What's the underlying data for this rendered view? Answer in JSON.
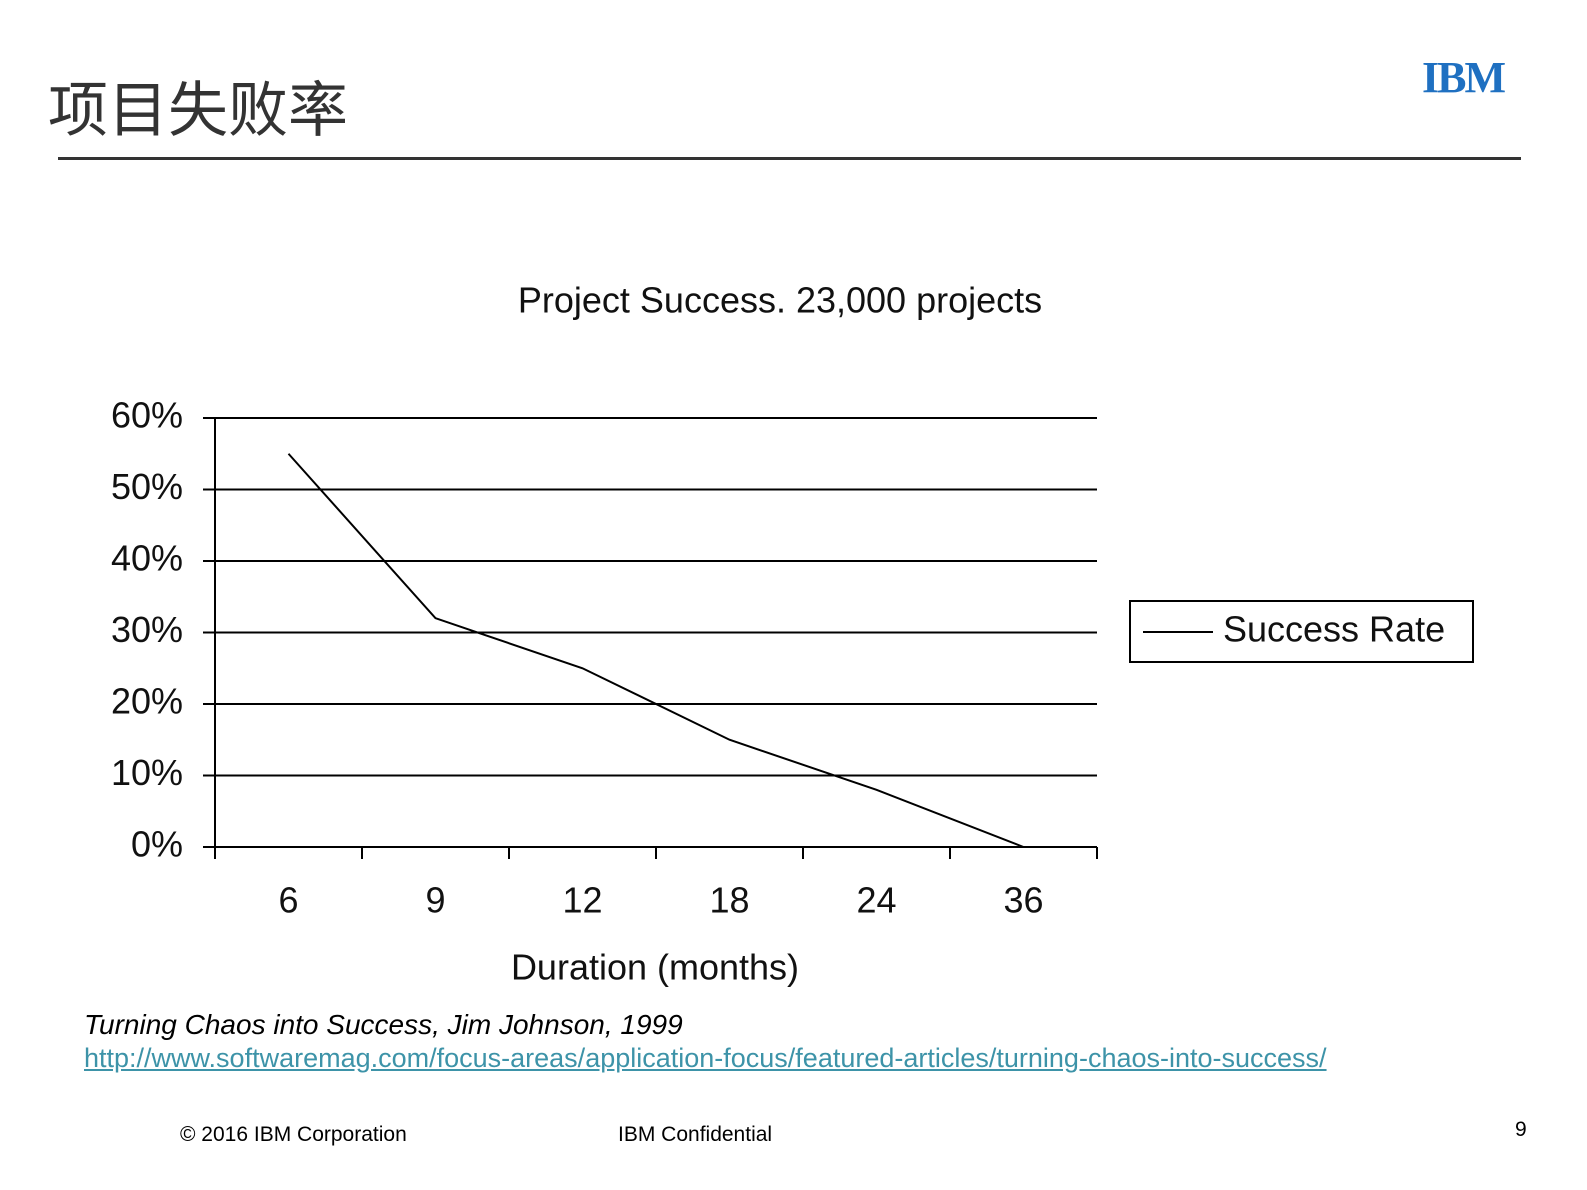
{
  "header": {
    "title": "项目失败率",
    "logo": "IBM"
  },
  "chart_data": {
    "type": "line",
    "title": "Project Success. 23,000 projects",
    "x_label": "Duration (months)",
    "categories": [
      "6",
      "9",
      "12",
      "18",
      "24",
      "36"
    ],
    "series": [
      {
        "name": "Success Rate",
        "color": "#000000",
        "values": [
          55,
          32,
          25,
          15,
          8,
          0
        ]
      }
    ],
    "ylim": [
      0,
      60
    ],
    "yticks": [
      {
        "value": 0,
        "label": "0%"
      },
      {
        "value": 10,
        "label": "10%"
      },
      {
        "value": 20,
        "label": "20%"
      },
      {
        "value": 30,
        "label": "30%"
      },
      {
        "value": 40,
        "label": "40%"
      },
      {
        "value": 50,
        "label": "50%"
      },
      {
        "value": 60,
        "label": "60%"
      }
    ],
    "grid": true,
    "legend": "right"
  },
  "citation": "Turning Chaos into Success, Jim Johnson, 1999",
  "link": "http://www.softwaremag.com/focus-areas/application-focus/featured-articles/turning-chaos-into-success/",
  "footer": {
    "copyright": "© 2016 IBM Corporation",
    "confidential": "IBM Confidential",
    "page": "9"
  }
}
